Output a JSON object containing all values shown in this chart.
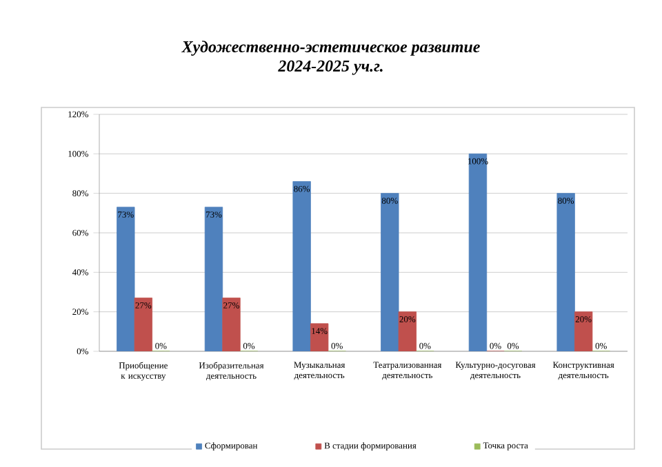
{
  "chart_data": {
    "type": "bar",
    "title": "Художественно-эстетическое развитие",
    "subtitle": "2024-2025 уч.г.",
    "categories": [
      "Приобщение к искусству",
      "Изобразительная деятельность",
      "Музыкальная деятельность",
      "Театрализованная деятельность",
      "Культурно-досуговая деятельность",
      "Конструктивная деятельность"
    ],
    "series": [
      {
        "name": "Сформирован",
        "color": "#4f81bd",
        "values": [
          73,
          73,
          86,
          80,
          100,
          80
        ],
        "value_labels": [
          "73%",
          "73%",
          "86%",
          "80%",
          "100%",
          "80%"
        ]
      },
      {
        "name": "В стадии формирования",
        "color": "#c0504d",
        "values": [
          27,
          27,
          14,
          20,
          0,
          20
        ],
        "value_labels": [
          "27%",
          "27%",
          "14%",
          "20%",
          "0%",
          "20%"
        ]
      },
      {
        "name": "Точка роста",
        "color": "#9bbb59",
        "values": [
          0,
          0,
          0,
          0,
          0,
          0
        ],
        "value_labels": [
          "0%",
          "0%",
          "0%",
          "0%",
          "0%",
          "0%"
        ]
      }
    ],
    "ylim": [
      0,
      120
    ],
    "yticks": [
      {
        "value": 0,
        "label": "0%"
      },
      {
        "value": 20,
        "label": "20%"
      },
      {
        "value": 40,
        "label": "40%"
      },
      {
        "value": 60,
        "label": "60%"
      },
      {
        "value": 80,
        "label": "80%"
      },
      {
        "value": 100,
        "label": "100%"
      },
      {
        "value": 120,
        "label": "120%"
      }
    ],
    "grid": "y",
    "legend": "bottom"
  }
}
